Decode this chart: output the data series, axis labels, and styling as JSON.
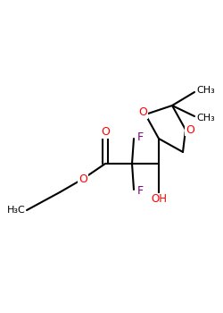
{
  "background_color": "#ffffff",
  "bond_color": "#000000",
  "oxygen_color": "#ff0000",
  "fluorine_color": "#800080",
  "figsize": [
    2.5,
    3.5
  ],
  "dpi": 100,
  "xlim": [
    0,
    10
  ],
  "ylim": [
    0,
    14
  ]
}
